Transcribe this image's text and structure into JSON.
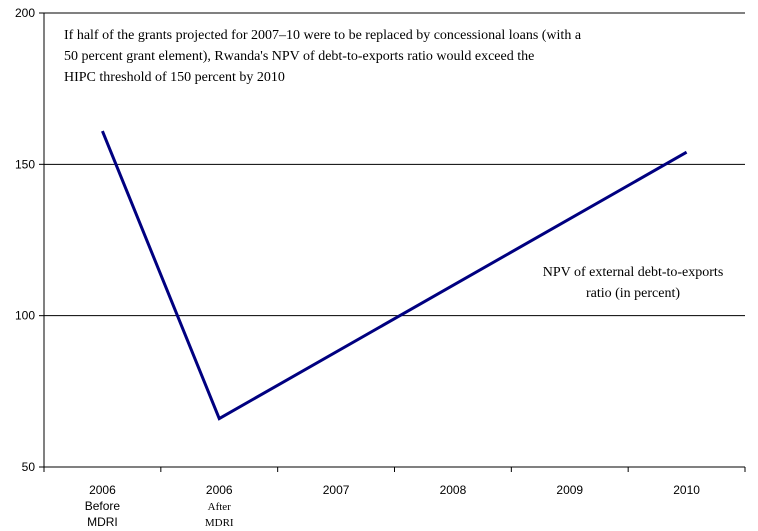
{
  "chart_data": {
    "type": "line",
    "title": "",
    "xlabel": "",
    "ylabel": "",
    "ylim": [
      50,
      200
    ],
    "yticks": [
      "50",
      "100",
      "150",
      "200"
    ],
    "grid": "horizontal",
    "categories": [
      [
        "2006",
        "Before",
        "MDRI"
      ],
      [
        "2006",
        "After",
        "MDRI"
      ],
      [
        "2007"
      ],
      [
        "2008"
      ],
      [
        "2009"
      ],
      [
        "2010"
      ]
    ],
    "series": [
      {
        "name": "",
        "color": "#000080",
        "points": [
          {
            "x": 0,
            "y": 161
          },
          {
            "x": 1,
            "y": 66
          },
          {
            "x": 5,
            "y": 154
          }
        ]
      }
    ],
    "annotation": [
      "If half of the grants projected for 2007–10 were to be replaced by concessional loans (with a",
      "50 percent grant element), Rwanda's NPV of debt-to-exports ratio would exceed the",
      "HIPC threshold of 150 percent  by 2010"
    ],
    "series_label": [
      "NPV of external debt-to-exports",
      "ratio (in percent)"
    ]
  }
}
